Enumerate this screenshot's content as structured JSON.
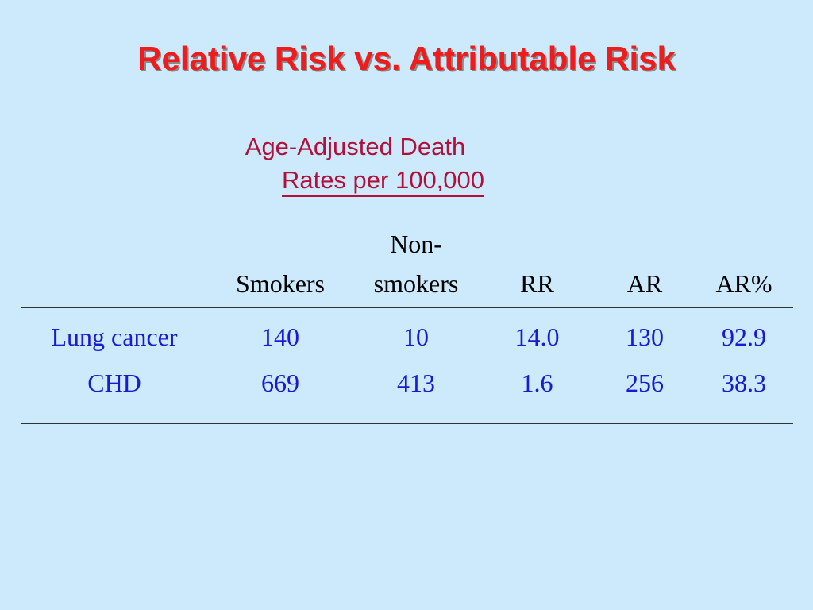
{
  "slide": {
    "title": "Relative Risk vs. Attributable Risk",
    "subtitle_line1": "Age-Adjusted Death",
    "subtitle_line2": "Rates per 100,000"
  },
  "table": {
    "headers": {
      "label": "",
      "smokers": "Smokers",
      "nonsmokers_line1": "Non-",
      "nonsmokers_line2": "smokers",
      "rr": "RR",
      "ar": "AR",
      "ar_pct": "AR%"
    },
    "rows": [
      {
        "label": "Lung cancer",
        "smokers": "140",
        "nonsmokers": "10",
        "rr": "14.0",
        "ar": "130",
        "ar_pct": "92.9"
      },
      {
        "label": "CHD",
        "smokers": "669",
        "nonsmokers": "413",
        "rr": "1.6",
        "ar": "256",
        "ar_pct": "38.3"
      }
    ]
  }
}
